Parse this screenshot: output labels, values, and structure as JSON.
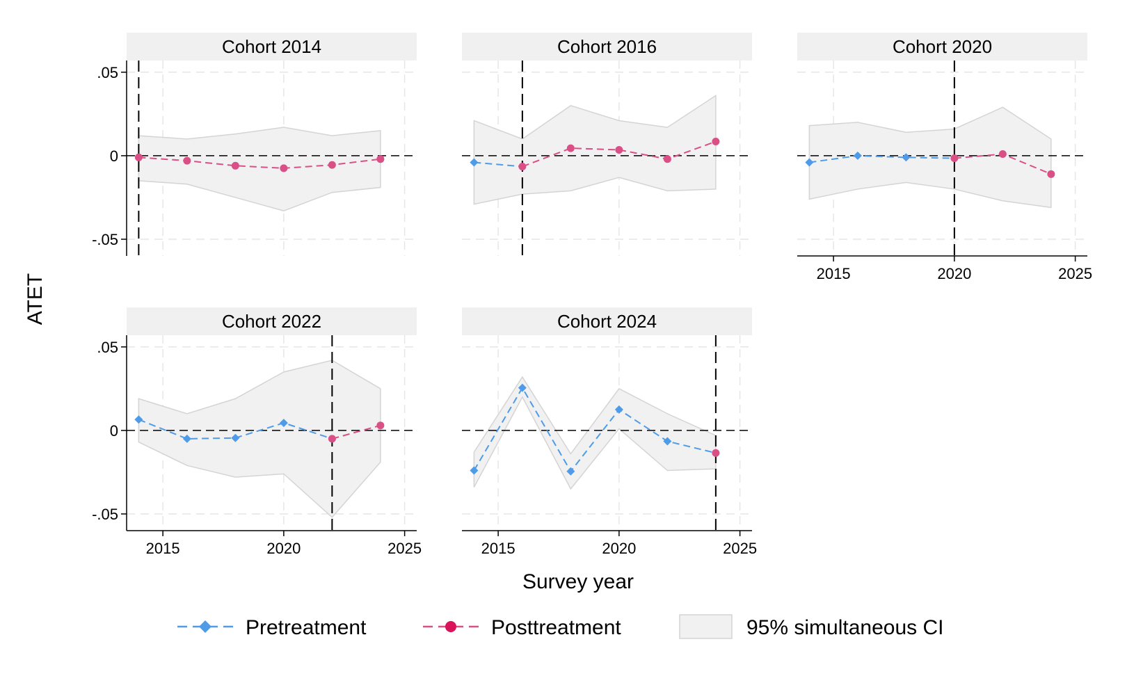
{
  "figure": {
    "ylabel": "ATET",
    "xlabel": "Survey year"
  },
  "legend": {
    "items": [
      {
        "label": "Pretreatment",
        "color": "#4f9be8",
        "marker": "diamond"
      },
      {
        "label": "Posttreatment",
        "color": "#d94f86",
        "marker": "circle"
      },
      {
        "label": "95% simultaneous CI",
        "color": "#f1f1f1",
        "marker": "area"
      }
    ]
  },
  "colors": {
    "pre": "#4f9be8",
    "post": "#d94f86",
    "ci_fill": "#f1f1f1",
    "ci_edge": "#d4d4d4",
    "strip": "#f0f0f0",
    "grid": "#e6e6e6"
  },
  "chart_data": [
    {
      "type": "line",
      "panel": "Cohort 2014",
      "title": "Cohort 2014",
      "cohort": 2014,
      "x": [
        2014,
        2016,
        2018,
        2020,
        2022,
        2024
      ],
      "series": [
        {
          "name": "Pretreatment",
          "x": [],
          "values": []
        },
        {
          "name": "Posttreatment",
          "x": [
            2014,
            2016,
            2018,
            2020,
            2022,
            2024
          ],
          "values": [
            -0.001,
            -0.003,
            -0.006,
            -0.0075,
            -0.0055,
            -0.002
          ]
        }
      ],
      "ci_lower": [
        -0.015,
        -0.017,
        -0.025,
        -0.033,
        -0.022,
        -0.019
      ],
      "ci_upper": [
        0.012,
        0.01,
        0.013,
        0.017,
        0.012,
        0.015
      ],
      "xlim": [
        2013.5,
        2025.5
      ],
      "ylim": [
        -0.06,
        0.057
      ],
      "xticks": [],
      "yticks": [
        ".05",
        "0",
        "-.05"
      ]
    },
    {
      "type": "line",
      "panel": "Cohort 2016",
      "title": "Cohort 2016",
      "cohort": 2016,
      "x": [
        2014,
        2016,
        2018,
        2020,
        2022,
        2024
      ],
      "series": [
        {
          "name": "Pretreatment",
          "x": [
            2014,
            2016
          ],
          "values": [
            -0.004,
            -0.0065
          ]
        },
        {
          "name": "Posttreatment",
          "x": [
            2016,
            2018,
            2020,
            2022,
            2024
          ],
          "values": [
            -0.0065,
            0.0045,
            0.0035,
            -0.002,
            0.0085
          ]
        }
      ],
      "ci_lower": [
        -0.029,
        -0.023,
        -0.021,
        -0.013,
        -0.021,
        -0.02
      ],
      "ci_upper": [
        0.021,
        0.01,
        0.03,
        0.021,
        0.017,
        0.036
      ],
      "xlim": [
        2013.5,
        2025.5
      ],
      "ylim": [
        -0.06,
        0.057
      ],
      "xticks": [],
      "yticks": []
    },
    {
      "type": "line",
      "panel": "Cohort 2020",
      "title": "Cohort 2020",
      "cohort": 2020,
      "x": [
        2014,
        2016,
        2018,
        2020,
        2022,
        2024
      ],
      "series": [
        {
          "name": "Pretreatment",
          "x": [
            2014,
            2016,
            2018,
            2020
          ],
          "values": [
            -0.004,
            0.0,
            -0.001,
            -0.0015
          ]
        },
        {
          "name": "Posttreatment",
          "x": [
            2020,
            2022,
            2024
          ],
          "values": [
            -0.0015,
            0.001,
            -0.011
          ]
        }
      ],
      "ci_lower": [
        -0.026,
        -0.02,
        -0.016,
        -0.02,
        -0.027,
        -0.031
      ],
      "ci_upper": [
        0.018,
        0.02,
        0.014,
        0.016,
        0.029,
        0.01
      ],
      "xlim": [
        2013.5,
        2025.5
      ],
      "ylim": [
        -0.06,
        0.057
      ],
      "xticks": [
        "2015",
        "2020",
        "2025"
      ],
      "yticks": []
    },
    {
      "type": "line",
      "panel": "Cohort 2022",
      "title": "Cohort 2022",
      "cohort": 2022,
      "x": [
        2014,
        2016,
        2018,
        2020,
        2022,
        2024
      ],
      "series": [
        {
          "name": "Pretreatment",
          "x": [
            2014,
            2016,
            2018,
            2020,
            2022
          ],
          "values": [
            0.0065,
            -0.005,
            -0.0045,
            0.0045,
            -0.005
          ]
        },
        {
          "name": "Posttreatment",
          "x": [
            2022,
            2024
          ],
          "values": [
            -0.005,
            0.003
          ]
        }
      ],
      "ci_lower": [
        -0.007,
        -0.021,
        -0.028,
        -0.026,
        -0.052,
        -0.019
      ],
      "ci_upper": [
        0.019,
        0.01,
        0.019,
        0.035,
        0.042,
        0.025
      ],
      "xlim": [
        2013.5,
        2025.5
      ],
      "ylim": [
        -0.06,
        0.057
      ],
      "xticks": [
        "2015",
        "2020",
        "2025"
      ],
      "yticks": [
        ".05",
        "0",
        "-.05"
      ]
    },
    {
      "type": "line",
      "panel": "Cohort 2024",
      "title": "Cohort 2024",
      "cohort": 2024,
      "x": [
        2014,
        2016,
        2018,
        2020,
        2022,
        2024
      ],
      "series": [
        {
          "name": "Pretreatment",
          "x": [
            2014,
            2016,
            2018,
            2020,
            2022,
            2024
          ],
          "values": [
            -0.024,
            0.0255,
            -0.0245,
            0.0125,
            -0.0065,
            -0.0135
          ]
        },
        {
          "name": "Posttreatment",
          "x": [
            2024
          ],
          "values": [
            -0.0135
          ]
        }
      ],
      "ci_lower": [
        -0.034,
        0.02,
        -0.035,
        0.001,
        -0.024,
        -0.023
      ],
      "ci_upper": [
        -0.013,
        0.032,
        -0.014,
        0.025,
        0.01,
        -0.003
      ],
      "xlim": [
        2013.5,
        2025.5
      ],
      "ylim": [
        -0.06,
        0.057
      ],
      "xticks": [
        "2015",
        "2020",
        "2025"
      ],
      "yticks": []
    }
  ]
}
